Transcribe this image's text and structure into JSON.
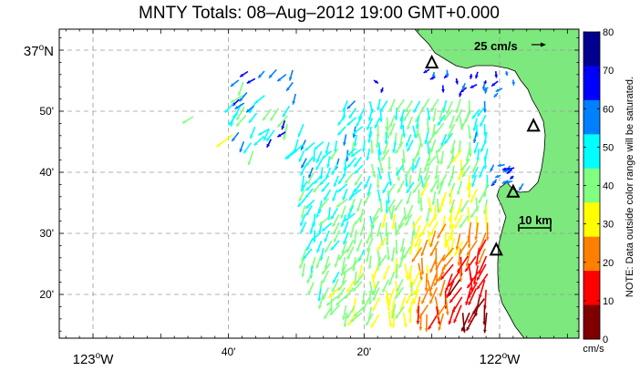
{
  "title": "MNTY Totals: 08–Aug–2012 19:00 GMT+0.000",
  "map": {
    "lat_labels": [
      {
        "deg": "37",
        "sup": "o",
        "hemi": "N",
        "lat": 37.0,
        "big": true
      },
      {
        "deg": "50'",
        "sup": "",
        "hemi": "",
        "lat": 36.8333,
        "big": false
      },
      {
        "deg": "40'",
        "sup": "",
        "hemi": "",
        "lat": 36.6667,
        "big": false
      },
      {
        "deg": "30'",
        "sup": "",
        "hemi": "",
        "lat": 36.5,
        "big": false
      },
      {
        "deg": "20'",
        "sup": "",
        "hemi": "",
        "lat": 36.3333,
        "big": false
      }
    ],
    "lon_labels": [
      {
        "text": "20'",
        "lon": -123.3333,
        "big": false
      },
      {
        "text": "123",
        "sup": "o",
        "hemi": "W",
        "lon": -123.0,
        "big": true
      },
      {
        "text": "40'",
        "lon": -122.6667,
        "big": false
      },
      {
        "text": "20'",
        "lon": -122.3333,
        "big": false
      },
      {
        "text": "122",
        "sup": "o",
        "hemi": "W",
        "lon": -122.0,
        "big": true
      }
    ],
    "scale_arrow_label": "25 cm/s",
    "scale_bar_label": "10 km",
    "land_color": "#7de87d",
    "ocean_color": "#ffffff"
  },
  "colorbar": {
    "ticks": [
      "80",
      "70",
      "60",
      "50",
      "40",
      "30",
      "20",
      "10",
      "0"
    ],
    "unit": "cm/s",
    "note": "NOTE: Data outside color range will be saturated.",
    "colors": [
      "#00008f",
      "#0000ff",
      "#0080ff",
      "#00ffff",
      "#80ff80",
      "#ffff00",
      "#ff8000",
      "#ff0000",
      "#800000"
    ]
  },
  "stations": [
    {
      "lon": -122.1667,
      "lat": 36.965
    },
    {
      "lon": -121.9167,
      "lat": 36.7925
    },
    {
      "lon": -121.9667,
      "lat": 36.6125
    },
    {
      "lon": -122.0083,
      "lat": 36.4542
    }
  ]
}
